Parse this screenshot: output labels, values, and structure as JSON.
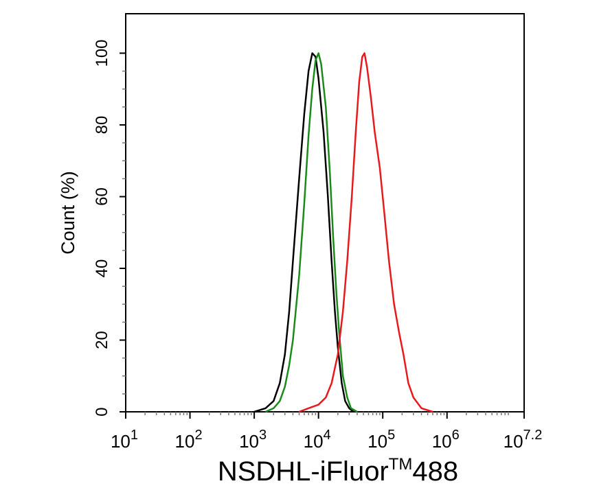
{
  "chart_data": {
    "type": "line",
    "xlabel": {
      "text": "NSDHL-iFluor",
      "superscript": "TM",
      "suffix": "488"
    },
    "ylabel": "Count (%)",
    "xscale": "log",
    "xlim": [
      10,
      15848931.9
    ],
    "xticks": [
      {
        "value": 10,
        "label": "10",
        "exponent": "1"
      },
      {
        "value": 100,
        "label": "10",
        "exponent": "2"
      },
      {
        "value": 1000,
        "label": "10",
        "exponent": "3"
      },
      {
        "value": 10000,
        "label": "10",
        "exponent": "4"
      },
      {
        "value": 100000,
        "label": "10",
        "exponent": "5"
      },
      {
        "value": 1000000,
        "label": "10",
        "exponent": "6"
      },
      {
        "value": 15848931.9,
        "label": "10",
        "exponent": "7.2"
      }
    ],
    "ylim": [
      0,
      111
    ],
    "yticks": [
      0,
      20,
      40,
      60,
      80,
      100
    ],
    "series": [
      {
        "color": "#000000",
        "x": [
          1000,
          1500,
          2000,
          2500,
          3000,
          3500,
          4000,
          5000,
          6000,
          7000,
          8000,
          9000,
          10000,
          12000,
          14000,
          16000,
          18000,
          20000,
          23000,
          26000,
          30000,
          35000
        ],
        "values": [
          0,
          1,
          3,
          8,
          16,
          28,
          42,
          65,
          83,
          95,
          100,
          99,
          93,
          78,
          60,
          42,
          28,
          18,
          8,
          3,
          1,
          0
        ]
      },
      {
        "color": "#1a8a1a",
        "x": [
          1500,
          2000,
          2500,
          3000,
          3500,
          4000,
          5000,
          6000,
          7000,
          8000,
          9000,
          10000,
          11000,
          13000,
          15000,
          17000,
          19000,
          21000,
          24000,
          28000,
          32000,
          40000
        ],
        "values": [
          0,
          1,
          3,
          7,
          13,
          20,
          38,
          58,
          77,
          90,
          98,
          100,
          97,
          85,
          67,
          48,
          33,
          22,
          10,
          4,
          1,
          0
        ]
      },
      {
        "color": "#e8191c",
        "x": [
          5000,
          7000,
          10000,
          13000,
          16000,
          20000,
          24000,
          28000,
          33000,
          38000,
          43000,
          48000,
          52000,
          57000,
          65000,
          75000,
          90000,
          105000,
          125000,
          150000,
          180000,
          210000,
          250000,
          300000,
          400000,
          600000
        ],
        "values": [
          0,
          1,
          2,
          4,
          8,
          16,
          28,
          42,
          60,
          78,
          92,
          99,
          100,
          96,
          88,
          78,
          68,
          56,
          42,
          30,
          22,
          16,
          8,
          4,
          1,
          0
        ]
      }
    ]
  }
}
